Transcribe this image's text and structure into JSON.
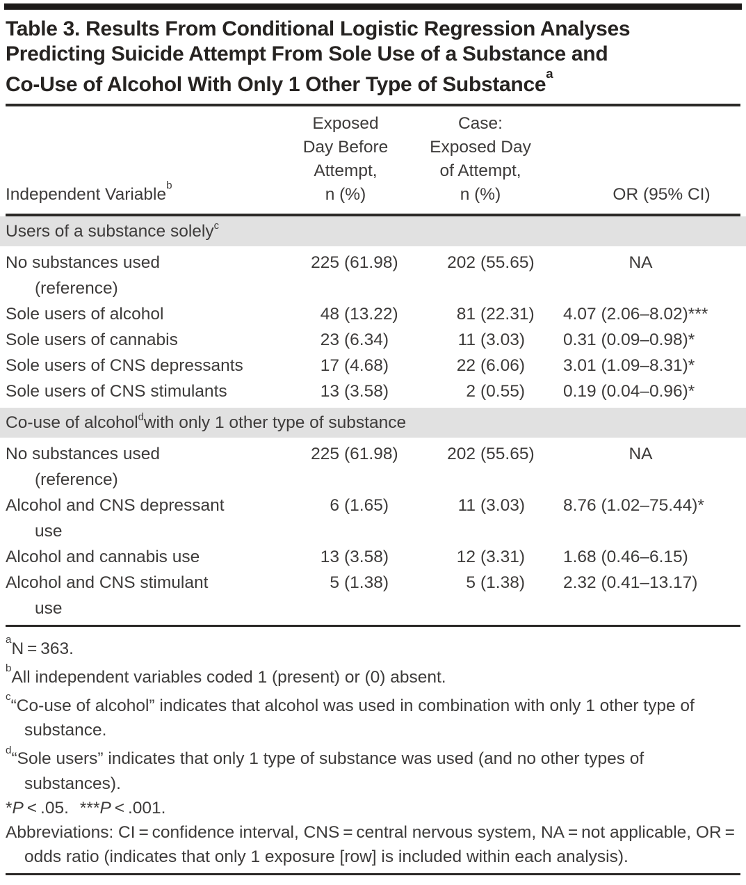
{
  "colors": {
    "band": "#e1e1e1",
    "rule": "#2b2927",
    "text": "#3d3b3a",
    "title": "#262321"
  },
  "table": {
    "title": {
      "lines": [
        "Table 3. Results From Conditional Logistic Regression Analyses",
        "Predicting Suicide Attempt From Sole Use of a Substance and",
        "Co-Use of Alcohol With Only 1 Other Type of Substance"
      ],
      "sup": "a"
    },
    "header": {
      "col1": {
        "text": "Independent Variable",
        "sup": "b"
      },
      "col2": {
        "lines": [
          "Exposed",
          "Day Before",
          "Attempt,",
          "n (%)"
        ]
      },
      "col3": {
        "lines": [
          "Case:",
          "Exposed Day",
          "of Attempt,",
          "n (%)"
        ]
      },
      "col4": {
        "text": "OR (95% CI)"
      }
    },
    "sections": [
      {
        "band": {
          "pre": "Users of a substance solely",
          "sup": "c",
          "post": ""
        },
        "rows": [
          {
            "lines": [
              "No substances used",
              "(reference)"
            ],
            "n1": "225",
            "p1": "(61.98)",
            "n2": "202",
            "p2": "(55.65)",
            "or": "NA"
          },
          {
            "lines": [
              "Sole users of alcohol"
            ],
            "n1": "48",
            "p1": "(13.22)",
            "n2": "81",
            "p2": "(22.31)",
            "or": "4.07 (2.06–8.02)***"
          },
          {
            "lines": [
              "Sole users of cannabis"
            ],
            "n1": "23",
            "p1": "(6.34)",
            "n2": "11",
            "p2": "(3.03)",
            "or": "0.31 (0.09–0.98)*"
          },
          {
            "lines": [
              "Sole users of CNS depressants"
            ],
            "n1": "17",
            "p1": "(4.68)",
            "n2": "22",
            "p2": "(6.06)",
            "or": "3.01 (1.09–8.31)*"
          },
          {
            "lines": [
              "Sole users of CNS stimulants"
            ],
            "n1": "13",
            "p1": "(3.58)",
            "n2": "2",
            "p2": "(0.55)",
            "or": "0.19 (0.04–0.96)*"
          }
        ]
      },
      {
        "band": {
          "pre": "Co-use of alcohol",
          "sup": "d",
          "post": " with only 1 other type of substance"
        },
        "rows": [
          {
            "lines": [
              "No substances used",
              "(reference)"
            ],
            "n1": "225",
            "p1": "(61.98)",
            "n2": "202",
            "p2": "(55.65)",
            "or": "NA"
          },
          {
            "lines": [
              "Alcohol and CNS depressant",
              "use"
            ],
            "n1": "6",
            "p1": "(1.65)",
            "n2": "11",
            "p2": "(3.03)",
            "or": "8.76 (1.02–75.44)*"
          },
          {
            "lines": [
              "Alcohol and cannabis use"
            ],
            "n1": "13",
            "p1": "(3.58)",
            "n2": "12",
            "p2": "(3.31)",
            "or": "1.68 (0.46–6.15)"
          },
          {
            "lines": [
              "Alcohol and CNS stimulant",
              "use"
            ],
            "n1": "5",
            "p1": "(1.38)",
            "n2": "5",
            "p2": "(1.38)",
            "or": "2.32 (0.41–13.17)"
          }
        ]
      }
    ]
  },
  "footnotes": {
    "a": {
      "sup": "a",
      "text": "N = 363."
    },
    "b": {
      "sup": "b",
      "text": "All independent variables coded 1 (present) or (0) absent."
    },
    "c": {
      "sup": "c",
      "text": "“Co-use of alcohol” indicates that alcohol was used in combination with only 1 other type of substance."
    },
    "d": {
      "sup": "d",
      "text": "“Sole users” indicates that only 1 type of substance was used (and no other types of substances)."
    },
    "p": {
      "star1": "*",
      "p1": "P",
      "cmp1": " < .05.",
      "star2": "***",
      "p2": "P",
      "cmp2": " < .001."
    },
    "abbr": {
      "text": "Abbreviations: CI = confidence interval, CNS = central nervous system, NA = not applicable, OR = odds ratio (indicates that only 1 exposure [row] is included within each analysis)."
    }
  }
}
